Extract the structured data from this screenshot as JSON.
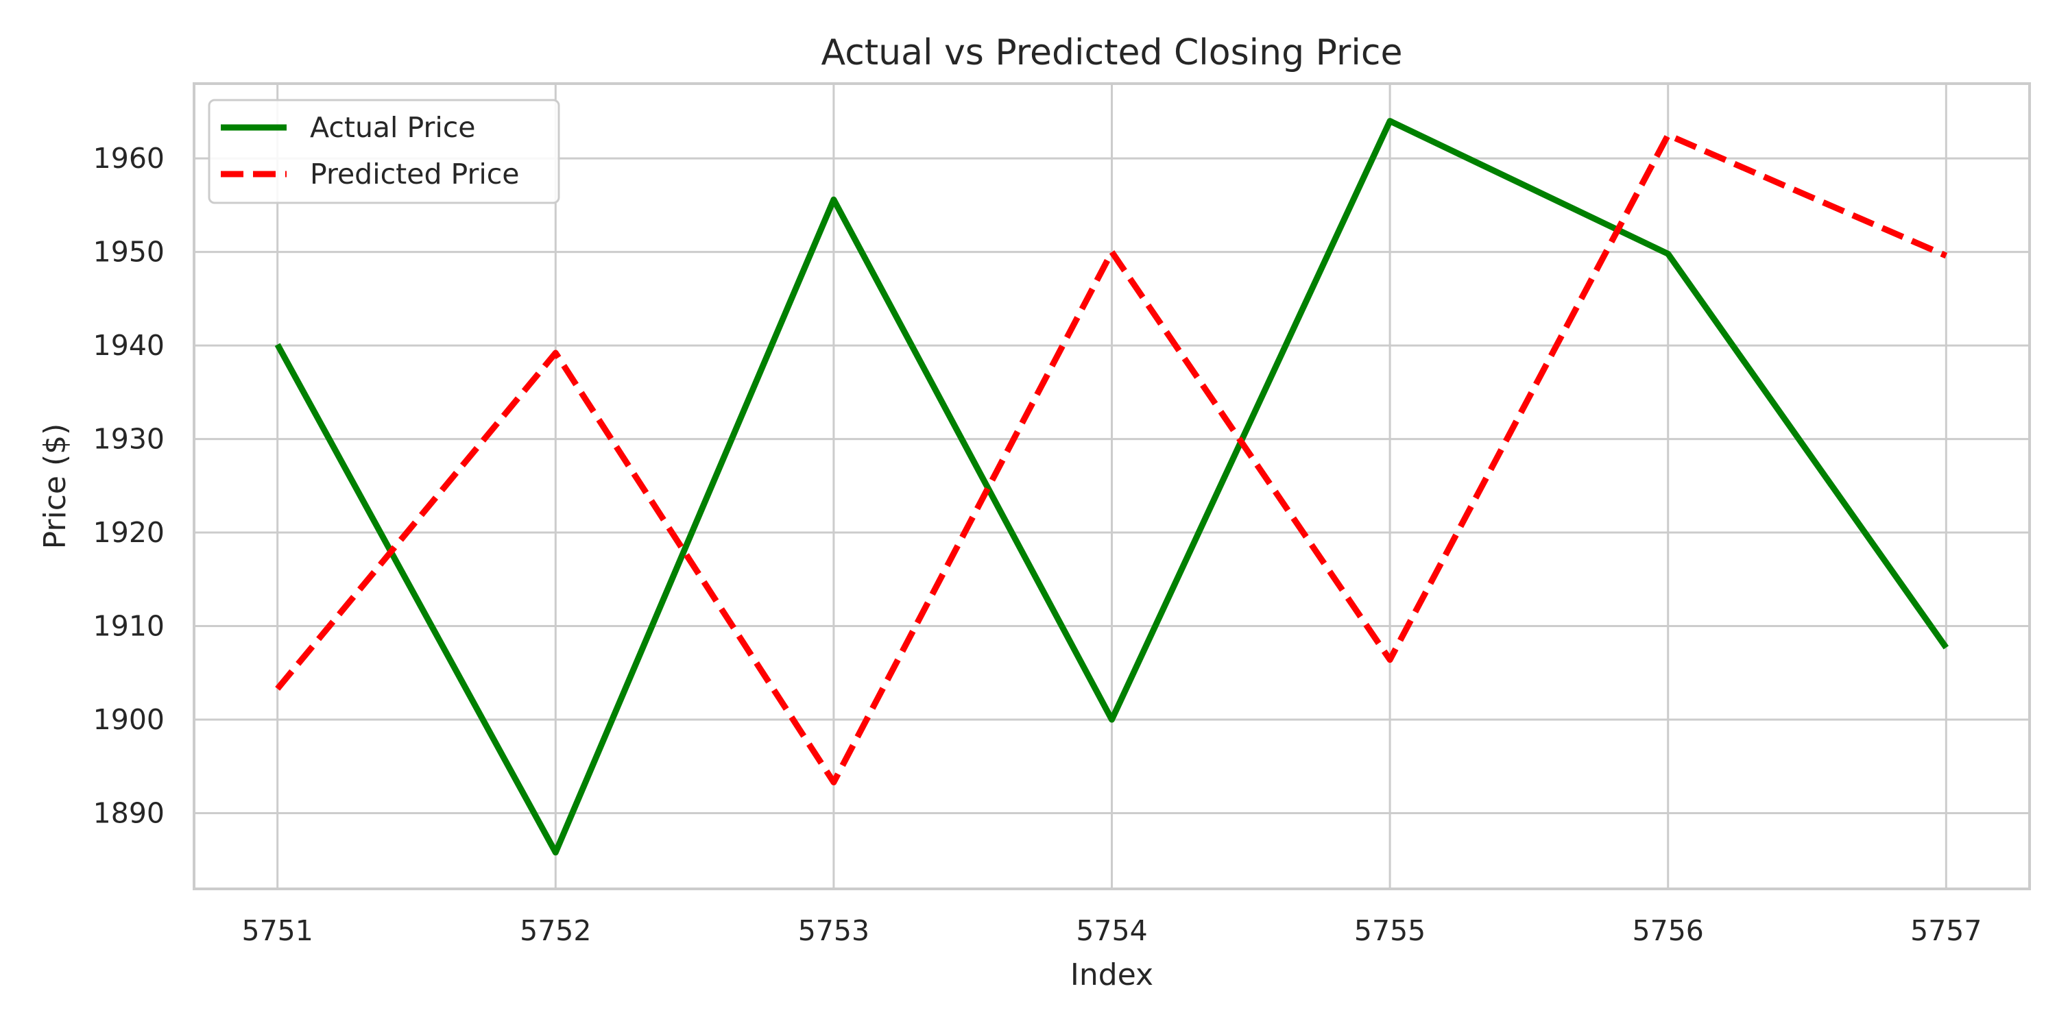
{
  "chart_data": {
    "type": "line",
    "title": "Actual vs Predicted Closing Price",
    "xlabel": "Index",
    "ylabel": "Price ($)",
    "x": [
      5751,
      5752,
      5753,
      5754,
      5755,
      5756,
      5757
    ],
    "xlim": [
      5750.7,
      5757.3
    ],
    "ylim": [
      1881.9,
      1968
    ],
    "yticks": [
      1890,
      1900,
      1910,
      1920,
      1930,
      1940,
      1950,
      1960
    ],
    "grid": true,
    "legend_position": "upper-left",
    "series": [
      {
        "name": "Actual Price",
        "color": "#008000",
        "style": "solid",
        "values": [
          1940.1,
          1885.8,
          1955.6,
          1900.0,
          1964.0,
          1949.8,
          1907.7
        ]
      },
      {
        "name": "Predicted Price",
        "color": "#ff0000",
        "style": "dashed",
        "values": [
          1903.3,
          1939.2,
          1893.3,
          1950.0,
          1906.4,
          1962.5,
          1949.6
        ]
      }
    ]
  }
}
